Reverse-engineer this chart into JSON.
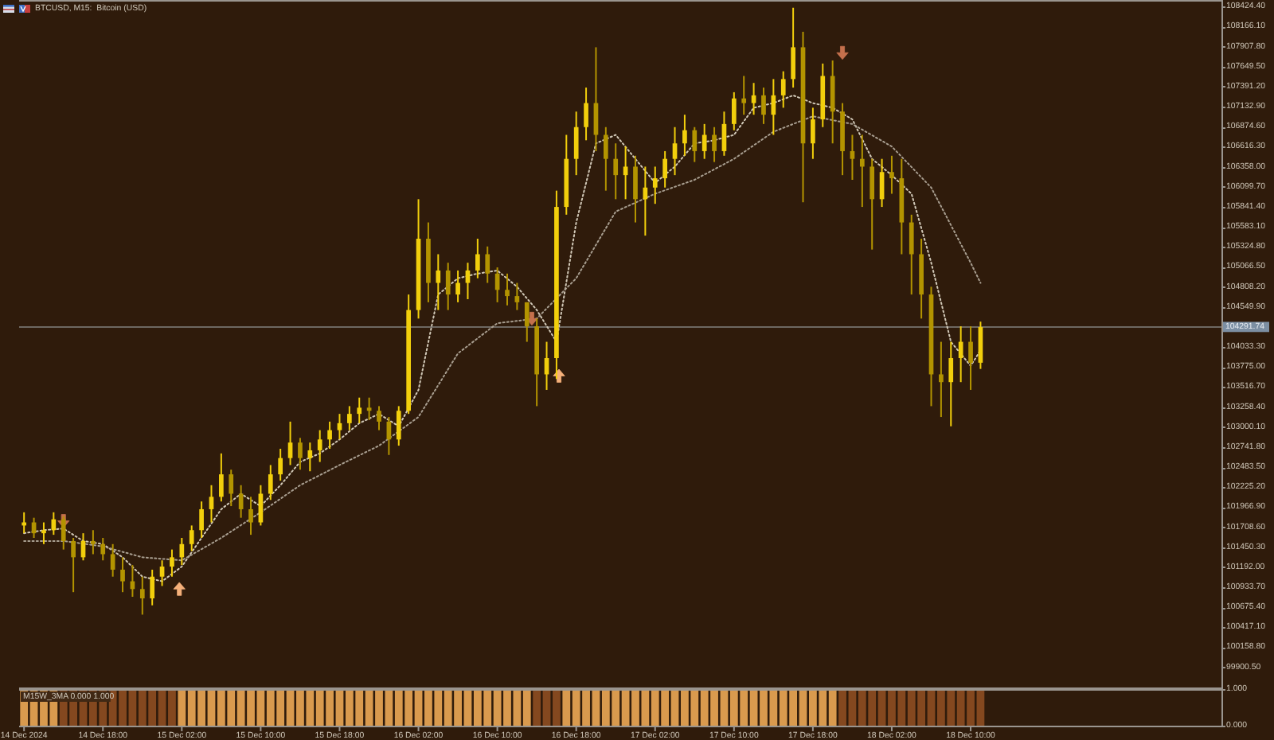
{
  "chart_data": [
    {
      "type": "candlestick",
      "title": "BTCUSD, M15:  Bitcoin (USD)",
      "x": [
        "2024-12-14T10:00",
        "2024-12-14T11:00",
        "2024-12-14T12:00",
        "2024-12-14T13:00",
        "2024-12-14T14:00",
        "2024-12-14T15:00",
        "2024-12-14T16:00",
        "2024-12-14T17:00",
        "2024-12-14T18:00",
        "2024-12-14T19:00",
        "2024-12-14T20:00",
        "2024-12-14T21:00",
        "2024-12-14T22:00",
        "2024-12-14T23:00",
        "2024-12-15T00:00",
        "2024-12-15T01:00",
        "2024-12-15T02:00",
        "2024-12-15T03:00",
        "2024-12-15T04:00",
        "2024-12-15T05:00",
        "2024-12-15T06:00",
        "2024-12-15T07:00",
        "2024-12-15T08:00",
        "2024-12-15T09:00",
        "2024-12-15T10:00",
        "2024-12-15T11:00",
        "2024-12-15T12:00",
        "2024-12-15T13:00",
        "2024-12-15T14:00",
        "2024-12-15T15:00",
        "2024-12-15T16:00",
        "2024-12-15T17:00",
        "2024-12-15T18:00",
        "2024-12-15T19:00",
        "2024-12-15T20:00",
        "2024-12-15T21:00",
        "2024-12-15T22:00",
        "2024-12-15T23:00",
        "2024-12-16T00:00",
        "2024-12-16T01:00",
        "2024-12-16T02:00",
        "2024-12-16T03:00",
        "2024-12-16T04:00",
        "2024-12-16T05:00",
        "2024-12-16T06:00",
        "2024-12-16T07:00",
        "2024-12-16T08:00",
        "2024-12-16T09:00",
        "2024-12-16T10:00",
        "2024-12-16T11:00",
        "2024-12-16T12:00",
        "2024-12-16T13:00",
        "2024-12-16T14:00",
        "2024-12-16T15:00",
        "2024-12-16T16:00",
        "2024-12-16T17:00",
        "2024-12-16T18:00",
        "2024-12-16T19:00",
        "2024-12-16T20:00",
        "2024-12-16T21:00",
        "2024-12-16T22:00",
        "2024-12-16T23:00",
        "2024-12-17T00:00",
        "2024-12-17T01:00",
        "2024-12-17T02:00",
        "2024-12-17T03:00",
        "2024-12-17T04:00",
        "2024-12-17T05:00",
        "2024-12-17T06:00",
        "2024-12-17T07:00",
        "2024-12-17T08:00",
        "2024-12-17T09:00",
        "2024-12-17T10:00",
        "2024-12-17T11:00",
        "2024-12-17T12:00",
        "2024-12-17T13:00",
        "2024-12-17T14:00",
        "2024-12-17T15:00",
        "2024-12-17T16:00",
        "2024-12-17T17:00",
        "2024-12-17T18:00",
        "2024-12-17T19:00",
        "2024-12-17T20:00",
        "2024-12-17T21:00",
        "2024-12-17T22:00",
        "2024-12-17T23:00",
        "2024-12-18T00:00",
        "2024-12-18T01:00",
        "2024-12-18T02:00",
        "2024-12-18T03:00",
        "2024-12-18T04:00",
        "2024-12-18T05:00",
        "2024-12-18T06:00",
        "2024-12-18T07:00",
        "2024-12-18T08:00",
        "2024-12-18T09:00",
        "2024-12-18T10:00",
        "2024-12-18T11:00"
      ],
      "ohlc": [
        [
          101730,
          101900,
          101630,
          101770
        ],
        [
          101770,
          101830,
          101570,
          101630
        ],
        [
          101630,
          101770,
          101490,
          101670
        ],
        [
          101670,
          101900,
          101610,
          101810
        ],
        [
          101810,
          101850,
          101420,
          101530
        ],
        [
          101530,
          101570,
          100870,
          101320
        ],
        [
          101320,
          101630,
          101280,
          101530
        ],
        [
          101530,
          101670,
          101360,
          101490
        ],
        [
          101490,
          101570,
          101280,
          101360
        ],
        [
          101360,
          101490,
          101070,
          101160
        ],
        [
          101160,
          101320,
          100870,
          101010
        ],
        [
          101010,
          101220,
          100810,
          100910
        ],
        [
          100910,
          101070,
          100580,
          100790
        ],
        [
          100790,
          101160,
          100700,
          101070
        ],
        [
          101070,
          101280,
          100950,
          101200
        ],
        [
          101200,
          101420,
          101070,
          101320
        ],
        [
          101320,
          101570,
          101220,
          101490
        ],
        [
          101490,
          101730,
          101400,
          101670
        ],
        [
          101670,
          102040,
          101570,
          101940
        ],
        [
          101940,
          102250,
          101770,
          102100
        ],
        [
          102100,
          102660,
          102040,
          102390
        ],
        [
          102390,
          102450,
          101980,
          102140
        ],
        [
          102140,
          102250,
          101830,
          101940
        ],
        [
          101940,
          102100,
          101610,
          101770
        ],
        [
          101770,
          102250,
          101730,
          102140
        ],
        [
          102140,
          102510,
          102060,
          102390
        ],
        [
          102390,
          102720,
          102310,
          102600
        ],
        [
          102600,
          103070,
          102510,
          102800
        ],
        [
          102800,
          102860,
          102450,
          102600
        ],
        [
          102600,
          102800,
          102430,
          102700
        ],
        [
          102700,
          102960,
          102550,
          102840
        ],
        [
          102840,
          103070,
          102720,
          102960
        ],
        [
          102960,
          103170,
          102840,
          103050
        ],
        [
          103050,
          103270,
          102960,
          103170
        ],
        [
          103170,
          103380,
          103050,
          103250
        ],
        [
          103250,
          103380,
          103090,
          103210
        ],
        [
          103210,
          103270,
          102960,
          103070
        ],
        [
          103070,
          103130,
          102640,
          102840
        ],
        [
          102840,
          103270,
          102760,
          103210
        ],
        [
          103210,
          104710,
          103170,
          104510
        ],
        [
          104510,
          105940,
          104400,
          105430
        ],
        [
          105430,
          105640,
          104610,
          104860
        ],
        [
          104860,
          105230,
          104510,
          105020
        ],
        [
          105020,
          105120,
          104510,
          104710
        ],
        [
          104710,
          105020,
          104610,
          104860
        ],
        [
          104860,
          105120,
          104650,
          105020
        ],
        [
          105020,
          105430,
          104920,
          105230
        ],
        [
          105230,
          105330,
          104860,
          104980
        ],
        [
          104980,
          105060,
          104610,
          104770
        ],
        [
          104770,
          104980,
          104570,
          104690
        ],
        [
          104690,
          104860,
          104510,
          104610
        ],
        [
          104610,
          104610,
          104100,
          104300
        ],
        [
          104300,
          104400,
          103270,
          103680
        ],
        [
          103680,
          104100,
          103480,
          103890
        ],
        [
          103890,
          106050,
          103620,
          105840
        ],
        [
          105840,
          106770,
          105740,
          106460
        ],
        [
          106460,
          107070,
          106250,
          106870
        ],
        [
          106870,
          107380,
          106700,
          107180
        ],
        [
          107180,
          107900,
          106560,
          106770
        ],
        [
          106770,
          106870,
          106050,
          106460
        ],
        [
          106460,
          106660,
          105940,
          106250
        ],
        [
          106250,
          106620,
          105940,
          106360
        ],
        [
          106360,
          106500,
          105640,
          105940
        ],
        [
          105940,
          106360,
          105470,
          106090
        ],
        [
          106090,
          106360,
          105880,
          106210
        ],
        [
          106210,
          106560,
          106090,
          106460
        ],
        [
          106460,
          106870,
          106250,
          106660
        ],
        [
          106660,
          107030,
          106500,
          106830
        ],
        [
          106830,
          106870,
          106420,
          106560
        ],
        [
          106560,
          106910,
          106460,
          106770
        ],
        [
          106770,
          106870,
          106420,
          106560
        ],
        [
          106560,
          107070,
          106500,
          106910
        ],
        [
          106910,
          107320,
          106830,
          107240
        ],
        [
          107240,
          107530,
          107030,
          107180
        ],
        [
          107180,
          107440,
          107030,
          107280
        ],
        [
          107280,
          107380,
          106910,
          107030
        ],
        [
          107030,
          107490,
          106770,
          107280
        ],
        [
          107280,
          107590,
          107120,
          107490
        ],
        [
          107490,
          108410,
          107380,
          107900
        ],
        [
          107900,
          108100,
          105900,
          106660
        ],
        [
          106660,
          107120,
          106460,
          106970
        ],
        [
          106970,
          107690,
          106870,
          107530
        ],
        [
          107530,
          107730,
          106660,
          107070
        ],
        [
          107070,
          107180,
          106250,
          106560
        ],
        [
          106560,
          106770,
          106190,
          106460
        ],
        [
          106460,
          106770,
          105840,
          106360
        ],
        [
          106360,
          106460,
          105290,
          105940
        ],
        [
          105940,
          106460,
          105840,
          106290
        ],
        [
          106290,
          106500,
          106010,
          106210
        ],
        [
          106210,
          106460,
          105230,
          105640
        ],
        [
          105640,
          105740,
          104710,
          105230
        ],
        [
          105230,
          105430,
          104400,
          104710
        ],
        [
          104710,
          104810,
          103270,
          103680
        ],
        [
          103680,
          104100,
          103130,
          103580
        ],
        [
          103580,
          104100,
          103010,
          103890
        ],
        [
          103890,
          104300,
          103580,
          104100
        ],
        [
          104100,
          104300,
          103480,
          103830
        ],
        [
          103830,
          104360,
          103750,
          104290
        ]
      ],
      "colors": [
        "#f2cf0c",
        "#b39400",
        "#f2cf0c",
        "#f2cf0c",
        "#b39400",
        "#b39400",
        "#f2cf0c",
        "#b39400",
        "#b39400",
        "#b39400",
        "#b39400",
        "#b39400",
        "#b39400",
        "#f2cf0c",
        "#f2cf0c",
        "#f2cf0c",
        "#f2cf0c",
        "#f2cf0c",
        "#f2cf0c",
        "#f2cf0c",
        "#f2cf0c",
        "#b39400",
        "#b39400",
        "#b39400",
        "#f2cf0c",
        "#f2cf0c",
        "#f2cf0c",
        "#f2cf0c",
        "#b39400",
        "#f2cf0c",
        "#f2cf0c",
        "#f2cf0c",
        "#f2cf0c",
        "#f2cf0c",
        "#f2cf0c",
        "#b39400",
        "#b39400",
        "#b39400",
        "#f2cf0c",
        "#f2cf0c",
        "#f2cf0c",
        "#b39400",
        "#f2cf0c",
        "#b39400",
        "#f2cf0c",
        "#f2cf0c",
        "#f2cf0c",
        "#b39400",
        "#b39400",
        "#b39400",
        "#b39400",
        "#b39400",
        "#b39400",
        "#f2cf0c",
        "#f2cf0c",
        "#f2cf0c",
        "#f2cf0c",
        "#f2cf0c",
        "#b39400",
        "#b39400",
        "#b39400",
        "#f2cf0c",
        "#b39400",
        "#f2cf0c",
        "#f2cf0c",
        "#f2cf0c",
        "#f2cf0c",
        "#f2cf0c",
        "#b39400",
        "#f2cf0c",
        "#b39400",
        "#f2cf0c",
        "#f2cf0c",
        "#b39400",
        "#f2cf0c",
        "#b39400",
        "#f2cf0c",
        "#f2cf0c",
        "#f2cf0c",
        "#b39400",
        "#f2cf0c",
        "#f2cf0c",
        "#b39400",
        "#b39400",
        "#b39400",
        "#b39400",
        "#b39400",
        "#f2cf0c",
        "#b39400",
        "#b39400",
        "#b39400",
        "#b39400",
        "#b39400",
        "#b39400",
        "#f2cf0c",
        "#f2cf0c",
        "#b39400",
        "#f2cf0c"
      ],
      "series": [
        {
          "type": "line",
          "color": "#d2c9b8",
          "line_style": "dotted",
          "x": [
            "2024-12-14T10:00",
            "2024-12-14T12:00",
            "2024-12-14T14:00",
            "2024-12-14T16:00",
            "2024-12-14T18:00",
            "2024-12-14T20:00",
            "2024-12-14T22:00",
            "2024-12-15T00:00",
            "2024-12-15T02:00",
            "2024-12-15T04:00",
            "2024-12-15T06:00",
            "2024-12-15T08:00",
            "2024-12-15T10:00",
            "2024-12-15T12:00",
            "2024-12-15T14:00",
            "2024-12-15T16:00",
            "2024-12-15T18:00",
            "2024-12-15T20:00",
            "2024-12-15T22:00",
            "2024-12-16T00:00",
            "2024-12-16T02:00",
            "2024-12-16T04:00",
            "2024-12-16T06:00",
            "2024-12-16T08:00",
            "2024-12-16T10:00",
            "2024-12-16T12:00",
            "2024-12-16T14:00",
            "2024-12-16T16:00",
            "2024-12-16T18:00",
            "2024-12-16T20:00",
            "2024-12-16T22:00",
            "2024-12-17T00:00",
            "2024-12-17T02:00",
            "2024-12-17T04:00",
            "2024-12-17T06:00",
            "2024-12-17T08:00",
            "2024-12-17T10:00",
            "2024-12-17T12:00",
            "2024-12-17T14:00",
            "2024-12-17T16:00",
            "2024-12-17T18:00",
            "2024-12-17T20:00",
            "2024-12-17T22:00",
            "2024-12-18T00:00",
            "2024-12-18T02:00",
            "2024-12-18T04:00",
            "2024-12-18T06:00",
            "2024-12-18T08:00",
            "2024-12-18T10:00",
            "2024-12-18T11:00"
          ],
          "values": [
            101630,
            101670,
            101690,
            101530,
            101490,
            101320,
            101070,
            101010,
            101200,
            101570,
            101940,
            102140,
            101980,
            102250,
            102550,
            102660,
            102840,
            103050,
            103170,
            103010,
            103480,
            104710,
            104920,
            104980,
            105020,
            104810,
            104510,
            104100,
            105640,
            106660,
            106770,
            106460,
            106150,
            106360,
            106660,
            106700,
            106770,
            107120,
            107180,
            107280,
            107180,
            107120,
            106970,
            106460,
            106250,
            106010,
            105120,
            104100,
            103790,
            103990
          ]
        },
        {
          "type": "line",
          "color": "#a89e90",
          "line_style": "dotted",
          "x": [
            "2024-12-14T10:00",
            "2024-12-14T14:00",
            "2024-12-14T18:00",
            "2024-12-14T22:00",
            "2024-12-15T02:00",
            "2024-12-15T06:00",
            "2024-12-15T10:00",
            "2024-12-15T14:00",
            "2024-12-15T18:00",
            "2024-12-15T22:00",
            "2024-12-16T02:00",
            "2024-12-16T06:00",
            "2024-12-16T10:00",
            "2024-12-16T14:00",
            "2024-12-16T18:00",
            "2024-12-16T22:00",
            "2024-12-17T02:00",
            "2024-12-17T06:00",
            "2024-12-17T10:00",
            "2024-12-17T14:00",
            "2024-12-17T18:00",
            "2024-12-17T22:00",
            "2024-12-18T02:00",
            "2024-12-18T06:00",
            "2024-12-18T10:00",
            "2024-12-18T11:00"
          ],
          "values": [
            101530,
            101530,
            101460,
            101320,
            101280,
            101570,
            101900,
            102250,
            102510,
            102760,
            103130,
            103950,
            104340,
            104400,
            104920,
            105780,
            106010,
            106190,
            106460,
            106810,
            107010,
            106910,
            106620,
            106090,
            105120,
            104860
          ]
        },
        {
          "type": "scatter",
          "color": "#c4704c",
          "marker": "triangle",
          "x": [
            "2024-12-14T14:00",
            "2024-12-16T13:30",
            "2024-12-17T21:00"
          ],
          "values": [
            101790,
            104400,
            107830
          ]
        },
        {
          "type": "scatter",
          "color": "#f5b07a",
          "marker": "triangle",
          "x": [
            "2024-12-15T01:45",
            "2024-12-16T16:15"
          ],
          "values": [
            100910,
            103660
          ]
        }
      ],
      "ref_lines": [
        {
          "axis": "y",
          "value": 104291.74,
          "label": "104291.74",
          "color": "#6e6862"
        }
      ],
      "xlim": [
        "2024-12-14T09:30",
        "2024-12-19T11:26"
      ],
      "ylim": [
        99640,
        108510
      ],
      "tick_labels": "y",
      "yticks": [
        {
          "value": 99900.5,
          "label": "99900.50"
        },
        {
          "value": 100158.8,
          "label": "100158.80"
        },
        {
          "value": 100417.1,
          "label": "100417.10"
        },
        {
          "value": 100675.4,
          "label": "100675.40"
        },
        {
          "value": 100933.7,
          "label": "100933.70"
        },
        {
          "value": 101192,
          "label": "101192.00"
        },
        {
          "value": 101450.3,
          "label": "101450.30"
        },
        {
          "value": 101708.6,
          "label": "101708.60"
        },
        {
          "value": 101966.9,
          "label": "101966.90"
        },
        {
          "value": 102225.2,
          "label": "102225.20"
        },
        {
          "value": 102483.5,
          "label": "102483.50"
        },
        {
          "value": 102741.8,
          "label": "102741.80"
        },
        {
          "value": 103000.1,
          "label": "103000.10"
        },
        {
          "value": 103258.4,
          "label": "103258.40"
        },
        {
          "value": 103516.7,
          "label": "103516.70"
        },
        {
          "value": 103775,
          "label": "103775.00"
        },
        {
          "value": 104033.3,
          "label": "104033.30"
        },
        {
          "value": 104549.9,
          "label": "104549.90"
        },
        {
          "value": 104808.2,
          "label": "104808.20"
        },
        {
          "value": 105066.5,
          "label": "105066.50"
        },
        {
          "value": 105324.8,
          "label": "105324.80"
        },
        {
          "value": 105583.1,
          "label": "105583.10"
        },
        {
          "value": 105841.4,
          "label": "105841.40"
        },
        {
          "value": 106099.7,
          "label": "106099.70"
        },
        {
          "value": 106358,
          "label": "106358.00"
        },
        {
          "value": 106616.3,
          "label": "106616.30"
        },
        {
          "value": 106874.6,
          "label": "106874.60"
        },
        {
          "value": 107132.9,
          "label": "107132.90"
        },
        {
          "value": 107391.2,
          "label": "107391.20"
        },
        {
          "value": 107649.5,
          "label": "107649.50"
        },
        {
          "value": 107907.8,
          "label": "107907.80"
        },
        {
          "value": 108166.1,
          "label": "108166.10"
        },
        {
          "value": 108424.4,
          "label": "108424.40"
        }
      ]
    },
    {
      "type": "bar",
      "title": "M15W_3MA 0.000 1.000",
      "x": [
        "2024-12-14T10:00",
        "2024-12-14T11:00",
        "2024-12-14T12:00",
        "2024-12-14T13:00",
        "2024-12-14T14:00",
        "2024-12-14T15:00",
        "2024-12-14T16:00",
        "2024-12-14T17:00",
        "2024-12-14T18:00",
        "2024-12-14T19:00",
        "2024-12-14T20:00",
        "2024-12-14T21:00",
        "2024-12-14T22:00",
        "2024-12-14T23:00",
        "2024-12-15T00:00",
        "2024-12-15T01:00",
        "2024-12-15T02:00",
        "2024-12-15T03:00",
        "2024-12-15T04:00",
        "2024-12-15T05:00",
        "2024-12-15T06:00",
        "2024-12-15T07:00",
        "2024-12-15T08:00",
        "2024-12-15T09:00",
        "2024-12-15T10:00",
        "2024-12-15T11:00",
        "2024-12-15T12:00",
        "2024-12-15T13:00",
        "2024-12-15T14:00",
        "2024-12-15T15:00",
        "2024-12-15T16:00",
        "2024-12-15T17:00",
        "2024-12-15T18:00",
        "2024-12-15T19:00",
        "2024-12-15T20:00",
        "2024-12-15T21:00",
        "2024-12-15T22:00",
        "2024-12-15T23:00",
        "2024-12-16T00:00",
        "2024-12-16T01:00",
        "2024-12-16T02:00",
        "2024-12-16T03:00",
        "2024-12-16T04:00",
        "2024-12-16T05:00",
        "2024-12-16T06:00",
        "2024-12-16T07:00",
        "2024-12-16T08:00",
        "2024-12-16T09:00",
        "2024-12-16T10:00",
        "2024-12-16T11:00",
        "2024-12-16T12:00",
        "2024-12-16T13:00",
        "2024-12-16T14:00",
        "2024-12-16T15:00",
        "2024-12-16T16:00",
        "2024-12-16T17:00",
        "2024-12-16T18:00",
        "2024-12-16T19:00",
        "2024-12-16T20:00",
        "2024-12-16T21:00",
        "2024-12-16T22:00",
        "2024-12-16T23:00",
        "2024-12-17T00:00",
        "2024-12-17T01:00",
        "2024-12-17T02:00",
        "2024-12-17T03:00",
        "2024-12-17T04:00",
        "2024-12-17T05:00",
        "2024-12-17T06:00",
        "2024-12-17T07:00",
        "2024-12-17T08:00",
        "2024-12-17T09:00",
        "2024-12-17T10:00",
        "2024-12-17T11:00",
        "2024-12-17T12:00",
        "2024-12-17T13:00",
        "2024-12-17T14:00",
        "2024-12-17T15:00",
        "2024-12-17T16:00",
        "2024-12-17T17:00",
        "2024-12-17T18:00",
        "2024-12-17T19:00",
        "2024-12-17T20:00",
        "2024-12-17T21:00",
        "2024-12-17T22:00",
        "2024-12-17T23:00",
        "2024-12-18T00:00",
        "2024-12-18T01:00",
        "2024-12-18T02:00",
        "2024-12-18T03:00",
        "2024-12-18T04:00",
        "2024-12-18T05:00",
        "2024-12-18T06:00",
        "2024-12-18T07:00",
        "2024-12-18T08:00",
        "2024-12-18T09:00",
        "2024-12-18T10:00",
        "2024-12-18T11:00"
      ],
      "values": [
        1,
        1,
        1,
        1,
        1,
        1,
        1,
        1,
        1,
        1,
        1,
        1,
        1,
        1,
        1,
        1,
        1,
        1,
        1,
        1,
        1,
        1,
        1,
        1,
        1,
        1,
        1,
        1,
        1,
        1,
        1,
        1,
        1,
        1,
        1,
        1,
        1,
        1,
        1,
        1,
        1,
        1,
        1,
        1,
        1,
        1,
        1,
        1,
        1,
        1,
        1,
        1,
        1,
        1,
        1,
        1,
        1,
        1,
        1,
        1,
        1,
        1,
        1,
        1,
        1,
        1,
        1,
        1,
        1,
        1,
        1,
        1,
        1,
        1,
        1,
        1,
        1,
        1,
        1,
        1,
        1,
        1,
        1,
        1,
        1,
        1,
        1,
        1,
        1,
        1,
        1,
        1,
        1,
        1,
        1,
        1,
        1,
        1
      ],
      "colors": [
        "#d99a4e",
        "#d99a4e",
        "#d99a4e",
        "#d99a4e",
        "#84481f",
        "#84481f",
        "#84481f",
        "#84481f",
        "#84481f",
        "#84481f",
        "#84481f",
        "#84481f",
        "#84481f",
        "#84481f",
        "#84481f",
        "#84481f",
        "#d99a4e",
        "#d99a4e",
        "#d99a4e",
        "#d99a4e",
        "#d99a4e",
        "#d99a4e",
        "#d99a4e",
        "#d99a4e",
        "#d99a4e",
        "#d99a4e",
        "#d99a4e",
        "#d99a4e",
        "#d99a4e",
        "#d99a4e",
        "#d99a4e",
        "#d99a4e",
        "#d99a4e",
        "#d99a4e",
        "#d99a4e",
        "#d99a4e",
        "#d99a4e",
        "#d99a4e",
        "#d99a4e",
        "#d99a4e",
        "#d99a4e",
        "#d99a4e",
        "#d99a4e",
        "#d99a4e",
        "#d99a4e",
        "#d99a4e",
        "#d99a4e",
        "#d99a4e",
        "#d99a4e",
        "#d99a4e",
        "#d99a4e",
        "#d99a4e",
        "#84481f",
        "#84481f",
        "#84481f",
        "#d99a4e",
        "#d99a4e",
        "#d99a4e",
        "#d99a4e",
        "#d99a4e",
        "#d99a4e",
        "#d99a4e",
        "#d99a4e",
        "#d99a4e",
        "#d99a4e",
        "#d99a4e",
        "#d99a4e",
        "#d99a4e",
        "#d99a4e",
        "#d99a4e",
        "#d99a4e",
        "#d99a4e",
        "#d99a4e",
        "#d99a4e",
        "#d99a4e",
        "#d99a4e",
        "#d99a4e",
        "#d99a4e",
        "#d99a4e",
        "#d99a4e",
        "#d99a4e",
        "#d99a4e",
        "#d99a4e",
        "#84481f",
        "#84481f",
        "#84481f",
        "#84481f",
        "#84481f",
        "#84481f",
        "#84481f",
        "#84481f",
        "#84481f",
        "#84481f",
        "#84481f",
        "#84481f",
        "#84481f",
        "#84481f",
        "#84481f"
      ],
      "xlim": [
        "2024-12-14T09:30",
        "2024-12-19T11:26"
      ],
      "ylim": [
        0,
        1
      ],
      "xticks": [
        {
          "value": "2024-12-14T10:00",
          "label": "14 Dec 2024"
        },
        {
          "value": "2024-12-14T18:00",
          "label": "14 Dec 18:00"
        },
        {
          "value": "2024-12-15T02:00",
          "label": "15 Dec 02:00"
        },
        {
          "value": "2024-12-15T10:00",
          "label": "15 Dec 10:00"
        },
        {
          "value": "2024-12-15T18:00",
          "label": "15 Dec 18:00"
        },
        {
          "value": "2024-12-16T02:00",
          "label": "16 Dec 02:00"
        },
        {
          "value": "2024-12-16T10:00",
          "label": "16 Dec 10:00"
        },
        {
          "value": "2024-12-16T18:00",
          "label": "16 Dec 18:00"
        },
        {
          "value": "2024-12-17T02:00",
          "label": "17 Dec 02:00"
        },
        {
          "value": "2024-12-17T10:00",
          "label": "17 Dec 10:00"
        },
        {
          "value": "2024-12-17T18:00",
          "label": "17 Dec 18:00"
        },
        {
          "value": "2024-12-18T02:00",
          "label": "18 Dec 02:00"
        },
        {
          "value": "2024-12-18T10:00",
          "label": "18 Dec 10:00"
        }
      ],
      "yticks": [
        {
          "value": 0,
          "label": "0.000"
        },
        {
          "value": 1,
          "label": "1.000"
        }
      ]
    }
  ]
}
